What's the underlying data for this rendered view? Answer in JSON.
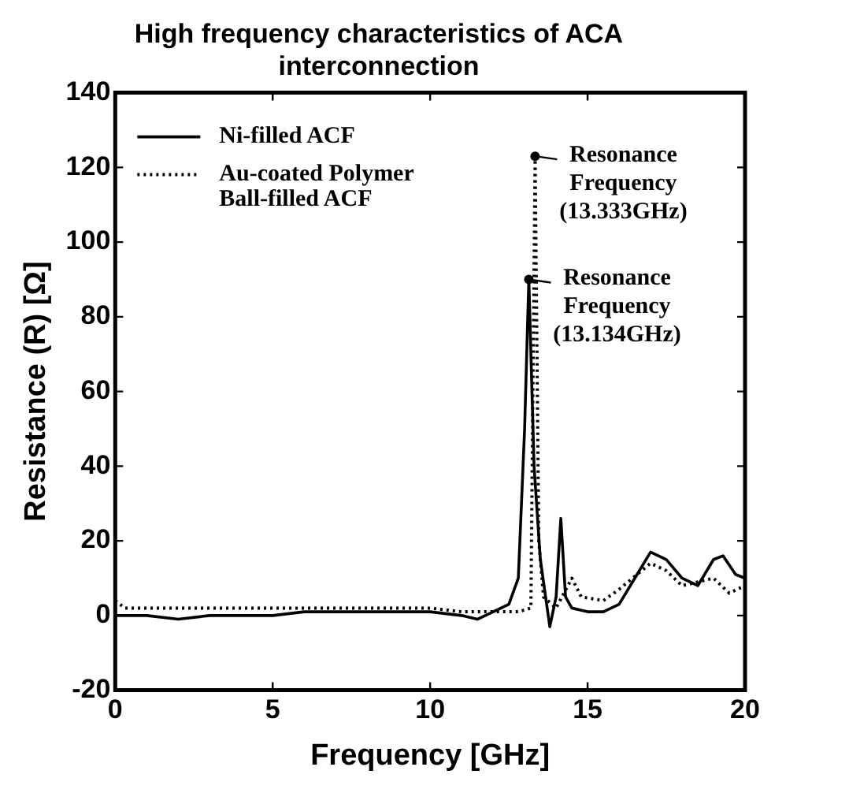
{
  "chart_data": {
    "type": "line",
    "title": "High frequency characteristics of ACA interconnection",
    "xlabel": "Frequency [GHz]",
    "ylabel": "Resistance (R) [Ω]",
    "xlim": [
      0,
      20
    ],
    "xticks": [
      0,
      5,
      10,
      15,
      20
    ],
    "ylim": [
      -20,
      140
    ],
    "yticks": [
      -20,
      0,
      20,
      40,
      60,
      80,
      100,
      120,
      140
    ],
    "grid": false,
    "legend": "top left",
    "marker": "none",
    "series": [
      {
        "name": "Ni-filled ACF",
        "color": "#000000",
        "line_style": "solid",
        "x": [
          0,
          1,
          2,
          3,
          4,
          5,
          6,
          7,
          8,
          9,
          10,
          11,
          11.5,
          12,
          12.5,
          12.8,
          13.0,
          13.134,
          13.3,
          13.5,
          13.8,
          14.0,
          14.15,
          14.3,
          14.5,
          15,
          15.5,
          16,
          16.5,
          17,
          17.5,
          18,
          18.5,
          19,
          19.3,
          19.7,
          20
        ],
        "values": [
          0,
          0,
          -1,
          0,
          0,
          0,
          1,
          1,
          1,
          1,
          1,
          0,
          -1,
          1,
          3,
          10,
          50,
          90,
          40,
          15,
          -3,
          5,
          26,
          5,
          2,
          1,
          1,
          3,
          10,
          17,
          15,
          10,
          8,
          15,
          16,
          11,
          10
        ]
      },
      {
        "name": "Au-coated Polymer Ball-filled ACF",
        "color": "#000000",
        "line_style": "dotted",
        "x": [
          0,
          0.3,
          1,
          2,
          3,
          4,
          5,
          6,
          7,
          8,
          9,
          10,
          11,
          12,
          12.8,
          13.2,
          13.333,
          13.45,
          13.6,
          14.0,
          14.5,
          14.8,
          15.5,
          16,
          17,
          17.5,
          18,
          19,
          19.5,
          20
        ],
        "values": [
          4,
          2,
          2,
          2,
          2,
          2,
          2,
          2,
          2,
          2,
          2,
          2,
          1,
          1,
          1,
          2,
          123,
          20,
          5,
          2,
          10,
          5,
          4,
          7,
          14,
          12,
          8,
          10,
          6,
          8
        ]
      }
    ],
    "annotations": [
      {
        "text": "Resonance Frequency (13.333GHz)",
        "x": 13.333,
        "y": 123
      },
      {
        "text": "Resonance Frequency (13.134GHz)",
        "x": 13.134,
        "y": 90
      }
    ]
  }
}
